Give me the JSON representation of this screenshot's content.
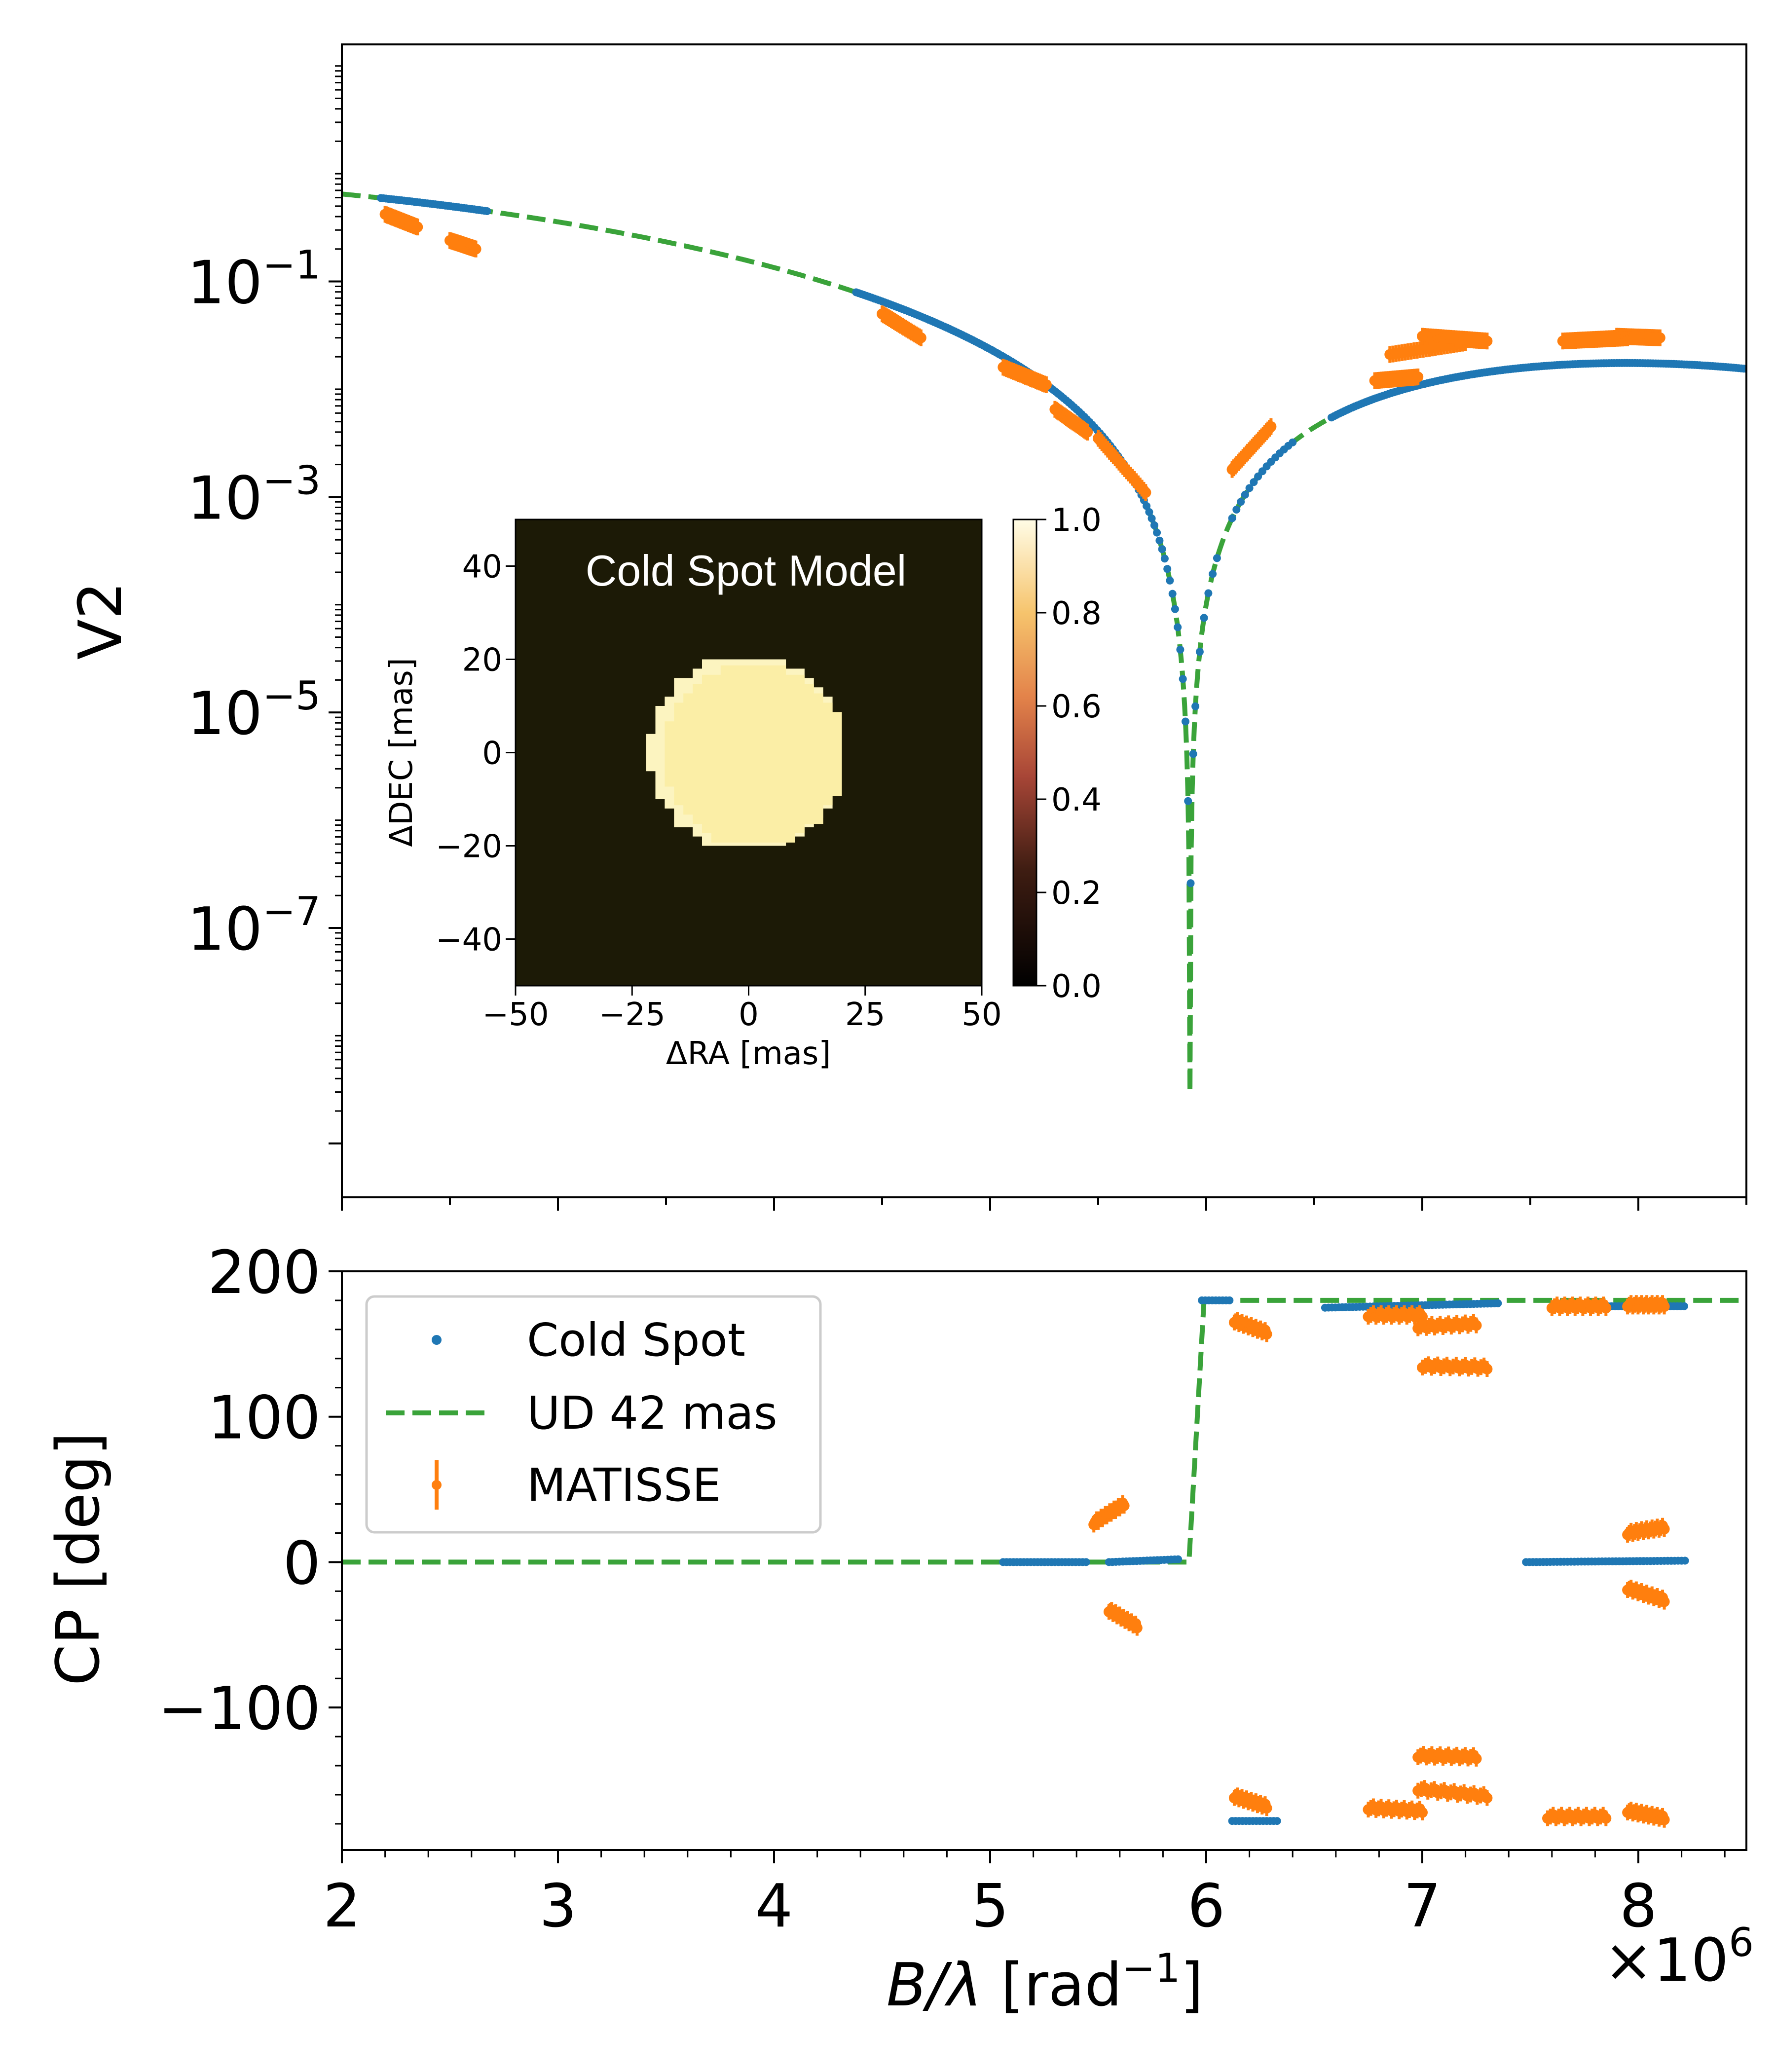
{
  "colors": {
    "model": "#1f77b4",
    "ud": "#3aa33a",
    "matisse": "#ff7f0e",
    "map_bg": "#1c1a06",
    "disk_main": "#fbeea6",
    "disk_edge": "#fcf4c0"
  },
  "chart_data": [
    {
      "type": "scatter",
      "panel": "visibility",
      "ylabel": "V2",
      "yscale": "log",
      "ylim_log10": [
        -9.5,
        1.2
      ],
      "yticks": [
        {
          "value": -1,
          "base": "10",
          "exp": "−1"
        },
        {
          "value": -3,
          "base": "10",
          "exp": "−3"
        },
        {
          "value": -5,
          "base": "10",
          "exp": "−5"
        },
        {
          "value": -7,
          "base": "10",
          "exp": "−7"
        }
      ],
      "xlim": [
        2.0,
        8.5
      ],
      "series": [
        {
          "name": "UD 42 mas",
          "kind": "model-curve",
          "diameter_mas": 42,
          "x_range": [
            2.0,
            8.5
          ],
          "min_v2": 3e-09,
          "first_null": 5.925
        },
        {
          "name": "Cold Spot",
          "kind": "model-points",
          "x_ranges": [
            [
              2.18,
              2.68
            ],
            [
              4.38,
              5.95
            ],
            [
              5.95,
              6.05
            ],
            [
              6.12,
              6.4
            ],
            [
              6.58,
              8.5
            ]
          ],
          "note": "follows UD curve with slightly shallower null"
        },
        {
          "name": "MATISSE",
          "kind": "data-clusters",
          "clusters": [
            {
              "x": [
                2.2,
                2.35
              ],
              "v2": [
                0.42,
                0.32
              ]
            },
            {
              "x": [
                2.5,
                2.62
              ],
              "v2": [
                0.24,
                0.2
              ]
            },
            {
              "x": [
                4.5,
                4.68
              ],
              "v2": [
                0.05,
                0.03
              ]
            },
            {
              "x": [
                5.06,
                5.26
              ],
              "v2": [
                0.016,
                0.011
              ]
            },
            {
              "x": [
                5.3,
                5.45
              ],
              "v2": [
                0.0065,
                0.004
              ]
            },
            {
              "x": [
                5.5,
                5.72
              ],
              "v2": [
                0.0035,
                0.0011
              ]
            },
            {
              "x": [
                6.12,
                6.3
              ],
              "v2": [
                0.0018,
                0.0045
              ]
            },
            {
              "x": [
                6.78,
                6.98
              ],
              "v2": [
                0.012,
                0.013
              ]
            },
            {
              "x": [
                6.85,
                7.2
              ],
              "v2": [
                0.021,
                0.027
              ]
            },
            {
              "x": [
                7.0,
                7.3
              ],
              "v2": [
                0.031,
                0.028
              ]
            },
            {
              "x": [
                7.65,
                7.95
              ],
              "v2": [
                0.028,
                0.03
              ]
            },
            {
              "x": [
                7.9,
                8.1
              ],
              "v2": [
                0.031,
                0.03
              ]
            }
          ]
        }
      ]
    },
    {
      "type": "scatter",
      "panel": "closure-phase",
      "ylabel": "CP [deg]",
      "xlabel": "B/λ [rad⁻¹]",
      "xlabel_parts": {
        "italic": "B/λ",
        "rest": " [rad",
        "sup": "−1",
        "close": "]"
      },
      "x_multiplier_base": "×10",
      "x_multiplier_exp": "6",
      "xlim": [
        2.0,
        8.5
      ],
      "ylim": [
        -198,
        200
      ],
      "xticks": [
        "2",
        "3",
        "4",
        "5",
        "6",
        "7",
        "8"
      ],
      "yticks": [
        {
          "value": 200,
          "label": "200"
        },
        {
          "value": 100,
          "label": "100"
        },
        {
          "value": 0,
          "label": "0"
        },
        {
          "value": -100,
          "label": "−100"
        }
      ],
      "series": [
        {
          "name": "UD 42 mas",
          "kind": "step",
          "x": [
            2.0,
            5.92,
            5.99,
            8.5
          ],
          "y": [
            0,
            0,
            180,
            180
          ]
        },
        {
          "name": "Cold Spot",
          "segments": [
            {
              "x": [
                5.06,
                5.45
              ],
              "y": [
                0,
                0
              ]
            },
            {
              "x": [
                5.55,
                5.88
              ],
              "y": [
                0,
                2
              ]
            },
            {
              "x": [
                5.98,
                6.12
              ],
              "y": [
                180,
                180
              ]
            },
            {
              "x": [
                6.12,
                6.33
              ],
              "y": [
                -178,
                -178
              ]
            },
            {
              "x": [
                6.55,
                7.35
              ],
              "y": [
                175,
                178
              ]
            },
            {
              "x": [
                7.48,
                8.22
              ],
              "y": [
                0,
                1
              ]
            },
            {
              "x": [
                7.62,
                8.22
              ],
              "y": [
                176,
                176
              ]
            }
          ]
        },
        {
          "name": "MATISSE",
          "clusters": [
            {
              "x": [
                5.48,
                5.62
              ],
              "y": [
                27,
                40
              ]
            },
            {
              "x": [
                5.55,
                5.68
              ],
              "y": [
                -33,
                -44
              ]
            },
            {
              "x": [
                6.13,
                6.28
              ],
              "y": [
                166,
                158
              ]
            },
            {
              "x": [
                6.13,
                6.28
              ],
              "y": [
                -161,
                -168
              ]
            },
            {
              "x": [
                6.75,
                7.0
              ],
              "y": [
                170,
                170
              ]
            },
            {
              "x": [
                6.75,
                7.0
              ],
              "y": [
                -169,
                -171
              ]
            },
            {
              "x": [
                6.98,
                7.25
              ],
              "y": [
                162,
                164
              ]
            },
            {
              "x": [
                7.0,
                7.3
              ],
              "y": [
                135,
                134
              ]
            },
            {
              "x": [
                6.98,
                7.25
              ],
              "y": [
                -133,
                -134
              ]
            },
            {
              "x": [
                6.98,
                7.3
              ],
              "y": [
                -156,
                -161
              ]
            },
            {
              "x": [
                7.6,
                7.85
              ],
              "y": [
                176,
                176
              ]
            },
            {
              "x": [
                7.58,
                7.85
              ],
              "y": [
                -175,
                -175
              ]
            },
            {
              "x": [
                7.95,
                8.12
              ],
              "y": [
                20,
                24
              ]
            },
            {
              "x": [
                7.95,
                8.12
              ],
              "y": [
                -18,
                -26
              ]
            },
            {
              "x": [
                7.95,
                8.12
              ],
              "y": [
                177,
                177
              ]
            },
            {
              "x": [
                7.95,
                8.12
              ],
              "y": [
                -171,
                -176
              ]
            }
          ]
        }
      ],
      "legend": {
        "position": "upper-left",
        "entries": [
          "Cold Spot",
          "UD 42 mas",
          "MATISSE"
        ]
      }
    },
    {
      "type": "heatmap",
      "panel": "inset-model-image",
      "title": "Cold Spot Model",
      "xlabel": "ΔRA [mas]",
      "ylabel": "ΔDEC [mas]",
      "xlim": [
        -50,
        50
      ],
      "ylim": [
        -50,
        50
      ],
      "xticks": [
        "−50",
        "−25",
        "0",
        "25",
        "50"
      ],
      "yticks": [
        {
          "value": 40,
          "label": "40"
        },
        {
          "value": 20,
          "label": "20"
        },
        {
          "value": 0,
          "label": "0"
        },
        {
          "value": -20,
          "label": "−20"
        },
        {
          "value": -40,
          "label": "−40"
        }
      ],
      "disk_radius_mas": 21,
      "colorbar": {
        "range": [
          0.0,
          1.0
        ],
        "ticks": [
          "0.0",
          "0.2",
          "0.4",
          "0.6",
          "0.8",
          "1.0"
        ],
        "colormap": "afmhot"
      }
    }
  ]
}
